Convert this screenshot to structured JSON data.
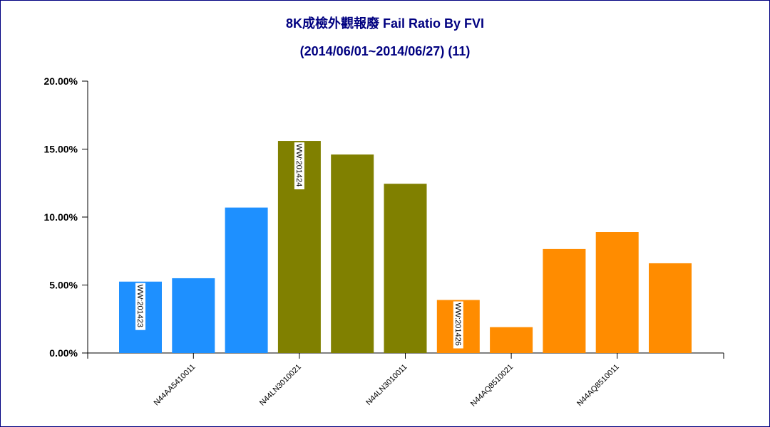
{
  "chart_data": {
    "type": "bar",
    "title": "8K成檢外觀報廢 Fail Ratio By FVI",
    "subtitle": "(2014/06/01~2014/06/27) (11)",
    "ylim": [
      0,
      20
    ],
    "yticks": [
      "20.00%",
      "15.00%",
      "10.00%",
      "5.00%",
      "0.00%"
    ],
    "ytick_values": [
      20,
      15,
      10,
      5,
      0
    ],
    "x_tick_labels": [
      {
        "label": "N44AA5410011",
        "after_bar": 1
      },
      {
        "label": "N44LN3010021",
        "after_bar": 3
      },
      {
        "label": "N44LN3010011",
        "after_bar": 5
      },
      {
        "label": "N44AQ8510021",
        "after_bar": 7
      },
      {
        "label": "N44AQ8510011",
        "after_bar": 9
      }
    ],
    "colors": {
      "WW:201423": "#1e90ff",
      "WW:201424": "#808000",
      "WW:201426": "#ff8c00"
    },
    "bars": [
      {
        "group": "WW:201423",
        "value": 5.25,
        "label": "WW:201423"
      },
      {
        "group": "WW:201423",
        "value": 5.5
      },
      {
        "group": "WW:201423",
        "value": 10.7
      },
      {
        "group": "WW:201424",
        "value": 15.6,
        "label": "WW:201424"
      },
      {
        "group": "WW:201424",
        "value": 14.6
      },
      {
        "group": "WW:201424",
        "value": 12.45
      },
      {
        "group": "WW:201426",
        "value": 3.9,
        "label": "WW:201426"
      },
      {
        "group": "WW:201426",
        "value": 1.9
      },
      {
        "group": "WW:201426",
        "value": 7.65
      },
      {
        "group": "WW:201426",
        "value": 8.9
      },
      {
        "group": "WW:201426",
        "value": 6.6
      }
    ]
  }
}
